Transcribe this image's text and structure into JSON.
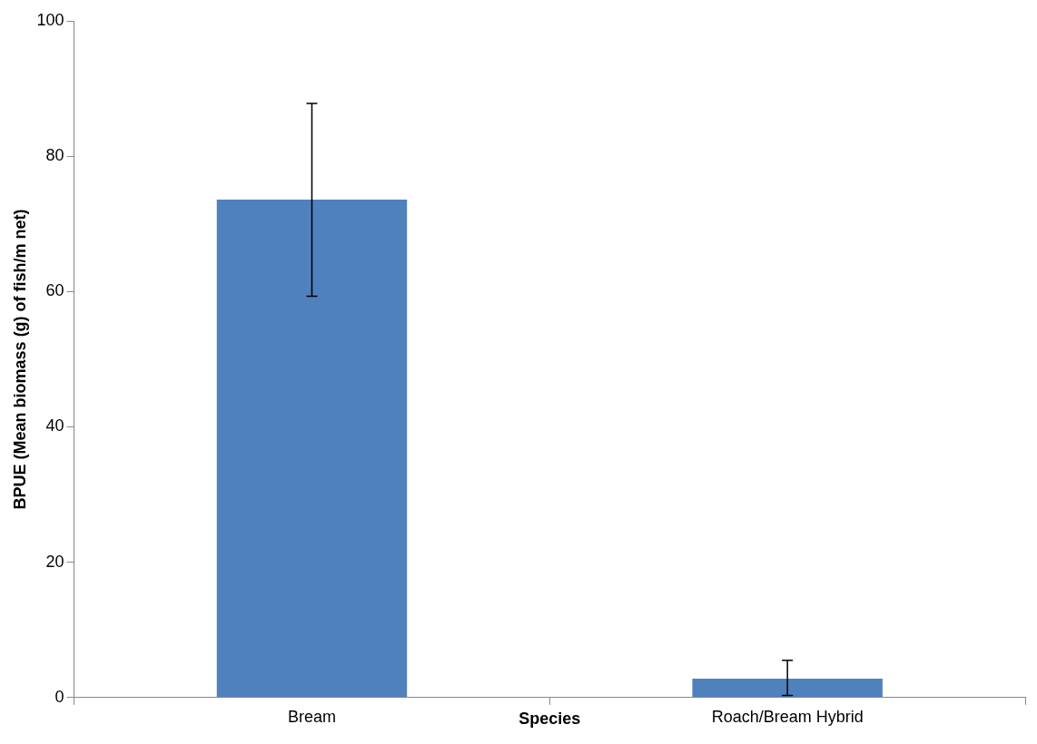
{
  "chart_data": {
    "type": "bar",
    "xlabel": "Species",
    "ylabel": "BPUE (Mean biomass (g) of fish/m net)",
    "categories": [
      "Bream",
      "Roach/Bream Hybrid"
    ],
    "values": [
      73.6,
      2.8
    ],
    "errors": [
      [
        59.3,
        87.8
      ],
      [
        0.3,
        5.5
      ]
    ],
    "color": "#4f81bd",
    "ylim": [
      0,
      100
    ],
    "yticks": [
      0,
      20,
      40,
      60,
      80,
      100
    ],
    "grid": false,
    "legend": false
  }
}
